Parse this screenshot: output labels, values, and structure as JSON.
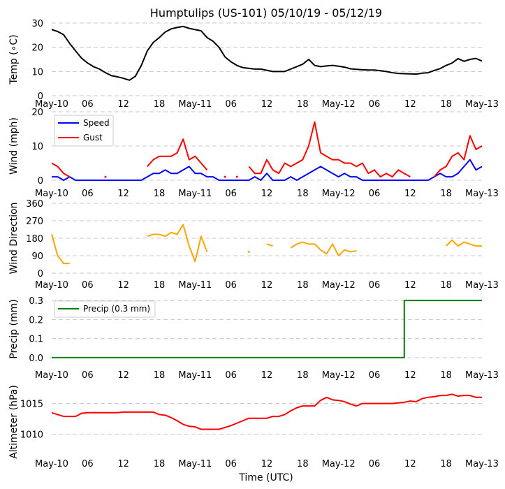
{
  "chart_data": {
    "title": "Humptulips (US-101) 05/10/19 - 05/12/19",
    "xlabel": "Time (UTC)",
    "xtick_labels": [
      "May-10",
      "06",
      "12",
      "18",
      "May-11",
      "06",
      "12",
      "18",
      "May-12",
      "06",
      "12",
      "18",
      "May-13"
    ],
    "xlim": [
      "2019-05-10 00:00",
      "2019-05-13 00:00"
    ],
    "time": [
      "2019-05-10 00:00",
      "2019-05-10 01:00",
      "2019-05-10 02:00",
      "2019-05-10 03:00",
      "2019-05-10 04:00",
      "2019-05-10 05:00",
      "2019-05-10 06:00",
      "2019-05-10 07:00",
      "2019-05-10 08:00",
      "2019-05-10 09:00",
      "2019-05-10 10:00",
      "2019-05-10 11:00",
      "2019-05-10 12:00",
      "2019-05-10 13:00",
      "2019-05-10 14:00",
      "2019-05-10 15:00",
      "2019-05-10 16:00",
      "2019-05-10 17:00",
      "2019-05-10 18:00",
      "2019-05-10 19:00",
      "2019-05-10 20:00",
      "2019-05-10 21:00",
      "2019-05-10 22:00",
      "2019-05-10 23:00",
      "2019-05-11 00:00",
      "2019-05-11 01:00",
      "2019-05-11 02:00",
      "2019-05-11 03:00",
      "2019-05-11 04:00",
      "2019-05-11 05:00",
      "2019-05-11 06:00",
      "2019-05-11 07:00",
      "2019-05-11 08:00",
      "2019-05-11 09:00",
      "2019-05-11 10:00",
      "2019-05-11 11:00",
      "2019-05-11 12:00",
      "2019-05-11 13:00",
      "2019-05-11 14:00",
      "2019-05-11 15:00",
      "2019-05-11 16:00",
      "2019-05-11 17:00",
      "2019-05-11 18:00",
      "2019-05-11 19:00",
      "2019-05-11 20:00",
      "2019-05-11 21:00",
      "2019-05-11 22:00",
      "2019-05-11 23:00",
      "2019-05-12 00:00",
      "2019-05-12 01:00",
      "2019-05-12 02:00",
      "2019-05-12 03:00",
      "2019-05-12 04:00",
      "2019-05-12 05:00",
      "2019-05-12 06:00",
      "2019-05-12 07:00",
      "2019-05-12 08:00",
      "2019-05-12 09:00",
      "2019-05-12 10:00",
      "2019-05-12 11:00",
      "2019-05-12 12:00",
      "2019-05-12 13:00",
      "2019-05-12 14:00",
      "2019-05-12 15:00",
      "2019-05-12 16:00",
      "2019-05-12 17:00",
      "2019-05-12 18:00",
      "2019-05-12 19:00",
      "2019-05-12 20:00",
      "2019-05-12 21:00",
      "2019-05-12 22:00",
      "2019-05-12 23:00",
      "2019-05-13 00:00"
    ],
    "panels": [
      {
        "id": "temp",
        "type": "line",
        "ylabel": "Temp ($^\\circ$C)",
        "ylabel_display": "Temp (∘C)",
        "ylim": [
          0,
          30
        ],
        "yticks": [
          0,
          10,
          20,
          30
        ],
        "ytick_labels": [
          "0",
          "10",
          "20",
          "30"
        ],
        "grid": true,
        "series": [
          {
            "color": "#000000",
            "values": [
              27.3,
              26.5,
              25.2,
              21.6,
              18.5,
              15.5,
              13.5,
              12,
              11,
              9.5,
              8.3,
              7.8,
              7.2,
              6.4,
              8,
              12.5,
              18.5,
              22,
              24,
              26.3,
              27.6,
              28.2,
              28.6,
              27.8,
              27.3,
              26.8,
              24,
              22.5,
              20,
              16,
              14,
              12.5,
              11.6,
              11.3,
              11,
              11,
              10.5,
              10,
              10,
              10,
              11,
              12,
              13,
              15,
              12.5,
              12,
              12.3,
              12.5,
              12.2,
              11.8,
              11.1,
              10.9,
              10.7,
              10.6,
              10.6,
              10.3,
              10,
              9.5,
              9.2,
              9.1,
              9,
              8.9,
              9.3,
              9.5,
              10.4,
              11.2,
              12.5,
              13.5,
              15.3,
              14.2,
              15,
              15.4,
              14.3
            ]
          }
        ]
      },
      {
        "id": "wind",
        "type": "line",
        "ylabel": "Wind (mph)",
        "ylim": [
          0,
          20
        ],
        "yticks": [
          0,
          10,
          20
        ],
        "ytick_labels": [
          "0",
          "10",
          "20"
        ],
        "grid": true,
        "legend": "upper-left",
        "series": [
          {
            "name": "Speed",
            "color": "#0000ff",
            "values": [
              1,
              1,
              0,
              1,
              0,
              0,
              0,
              0,
              0,
              0,
              0,
              0,
              0,
              0,
              0,
              0,
              1,
              2,
              2,
              3,
              2,
              2,
              3,
              4,
              2,
              2,
              1,
              1,
              0,
              0,
              0,
              0,
              0,
              0,
              1,
              0,
              2,
              0,
              0,
              0,
              1,
              0,
              1,
              2,
              3,
              4,
              3,
              2,
              1,
              2,
              1,
              1,
              0,
              0,
              0,
              0,
              0,
              0,
              0,
              0,
              0,
              0,
              0,
              0,
              1,
              2,
              1,
              1,
              2,
              4,
              6,
              3,
              4
            ]
          },
          {
            "name": "Gust",
            "color": "#ff0000",
            "values": [
              5,
              4,
              2,
              1,
              null,
              null,
              null,
              null,
              null,
              1,
              null,
              null,
              null,
              null,
              null,
              null,
              4,
              6,
              7,
              7,
              7,
              8,
              12,
              6,
              7,
              5,
              3,
              null,
              null,
              1,
              null,
              1,
              null,
              4,
              2,
              2,
              6,
              3,
              2,
              5,
              4,
              5,
              6,
              10,
              17,
              8,
              7,
              6,
              6,
              5,
              5,
              4,
              5,
              2,
              3,
              1,
              2,
              1,
              3,
              2,
              1,
              null,
              null,
              null,
              1,
              3,
              4,
              7,
              8,
              6,
              13,
              9,
              10
            ]
          }
        ]
      },
      {
        "id": "direction",
        "type": "line",
        "ylabel": "Wind Direction",
        "ylim": [
          0,
          360
        ],
        "yticks": [
          0,
          90,
          180,
          270,
          360
        ],
        "ytick_labels": [
          "0",
          "90",
          "180",
          "270",
          "360"
        ],
        "grid": true,
        "series": [
          {
            "color": "#ffa500",
            "values": [
              200,
              90,
              50,
              50,
              null,
              null,
              null,
              null,
              null,
              null,
              null,
              null,
              null,
              null,
              null,
              null,
              190,
              200,
              200,
              190,
              210,
              200,
              250,
              140,
              60,
              190,
              110,
              null,
              null,
              null,
              null,
              null,
              null,
              110,
              null,
              null,
              150,
              140,
              null,
              null,
              130,
              150,
              160,
              150,
              150,
              120,
              100,
              150,
              90,
              120,
              110,
              115,
              null,
              null,
              null,
              null,
              null,
              null,
              null,
              null,
              null,
              null,
              null,
              null,
              null,
              null,
              140,
              170,
              140,
              160,
              150,
              140,
              140
            ]
          }
        ]
      },
      {
        "id": "precip",
        "type": "line",
        "ylabel": "Precip (mm)",
        "ylim": [
          -0.015,
          0.315
        ],
        "yticks": [
          0.0,
          0.1,
          0.2,
          0.3
        ],
        "ytick_labels": [
          "0.0",
          "0.1",
          "0.2",
          "0.3"
        ],
        "grid": true,
        "legend": "upper-left",
        "series": [
          {
            "name": "Precip (0.3 mm)",
            "color": "#008000",
            "values": [
              0,
              0,
              0,
              0,
              0,
              0,
              0,
              0,
              0,
              0,
              0,
              0,
              0,
              0,
              0,
              0,
              0,
              0,
              0,
              0,
              0,
              0,
              0,
              0,
              0,
              0,
              0,
              0,
              0,
              0,
              0,
              0,
              0,
              0,
              0,
              0,
              0,
              0,
              0,
              0,
              0,
              0,
              0,
              0,
              0,
              0,
              0,
              0,
              0,
              0,
              0,
              0,
              0,
              0,
              0,
              0,
              0,
              0,
              0,
              0.3,
              0.3,
              0.3,
              0.3,
              0.3,
              0.3,
              0.3,
              0.3,
              0.3,
              0.3,
              0.3,
              0.3,
              0.3,
              0.3
            ]
          }
        ]
      },
      {
        "id": "altimeter",
        "type": "line",
        "ylabel": "Altimeter (hPa)",
        "ylim": [
          1007,
          1017
        ],
        "yticks": [
          1010,
          1015
        ],
        "ytick_labels": [
          "1010",
          "1015"
        ],
        "grid": true,
        "series": [
          {
            "color": "#ff0000",
            "values": [
              1013.5,
              1013.2,
              1012.9,
              1012.9,
              1012.9,
              1013.4,
              1013.5,
              1013.5,
              1013.5,
              1013.5,
              1013.5,
              1013.5,
              1013.6,
              1013.6,
              1013.6,
              1013.6,
              1013.6,
              1013.6,
              1013.2,
              1013.1,
              1012.7,
              1012.2,
              1011.6,
              1011.3,
              1011.2,
              1010.8,
              1010.8,
              1010.8,
              1010.8,
              1011.1,
              1011.4,
              1011.8,
              1012.2,
              1012.6,
              1012.6,
              1012.6,
              1012.6,
              1012.9,
              1012.9,
              1013.2,
              1013.8,
              1014.3,
              1014.6,
              1014.6,
              1014.6,
              1015.5,
              1016,
              1015.6,
              1015.5,
              1015.3,
              1014.9,
              1014.6,
              1015,
              1015,
              1015,
              1015,
              1015,
              1015,
              1015.1,
              1015.2,
              1015.4,
              1015.3,
              1015.8,
              1016,
              1016.1,
              1016.3,
              1016.3,
              1016.5,
              1016.2,
              1016.3,
              1016.3,
              1016,
              1016
            ]
          }
        ]
      }
    ]
  }
}
